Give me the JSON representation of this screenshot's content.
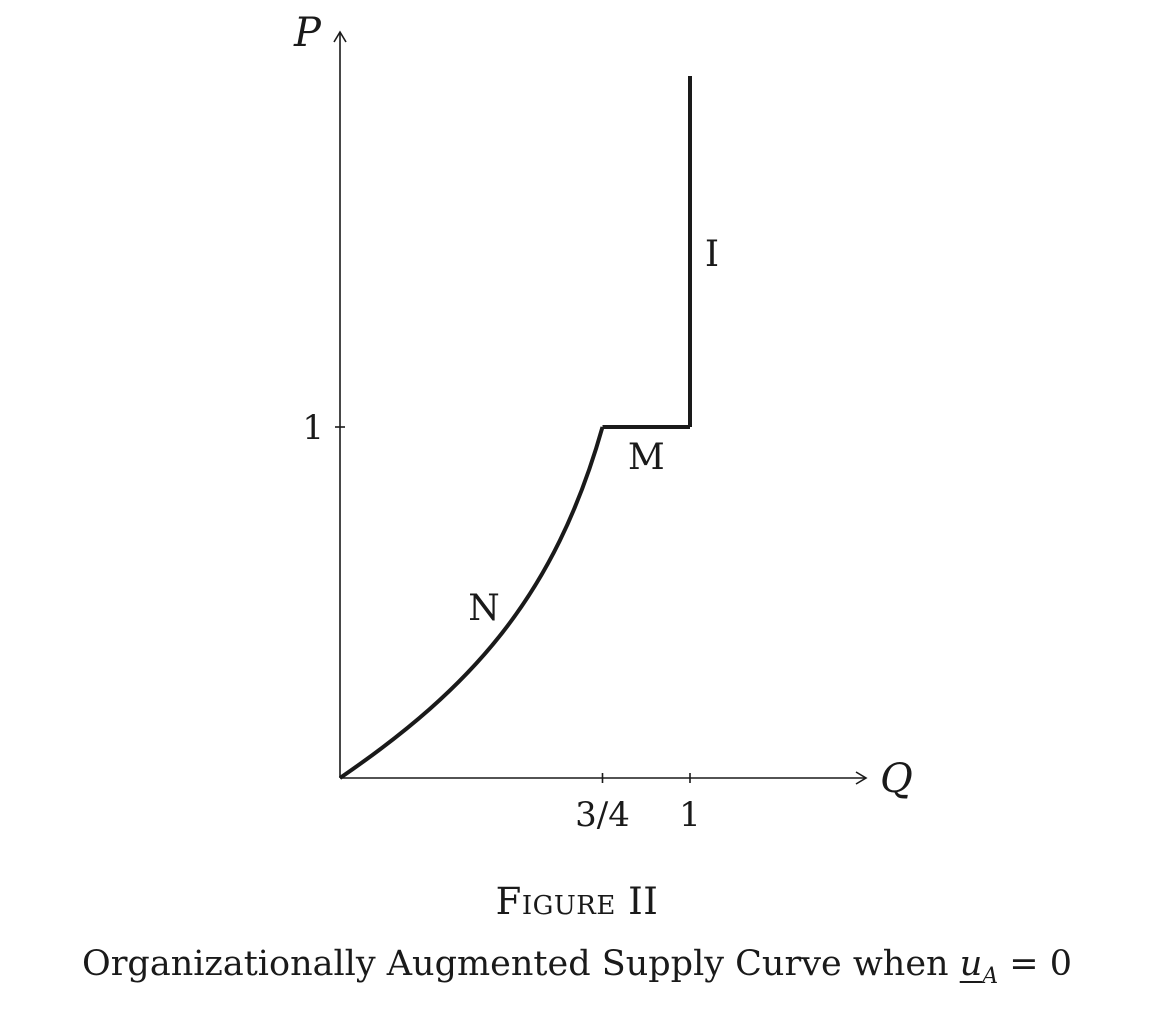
{
  "chart_data": {
    "type": "line",
    "xlabel": "Q",
    "ylabel": "P",
    "x_ticks": [
      {
        "value": 0.75,
        "label": "3/4"
      },
      {
        "value": 1,
        "label": "1"
      }
    ],
    "y_ticks": [
      {
        "value": 1,
        "label": "1"
      }
    ],
    "xlim": [
      0,
      1.5
    ],
    "ylim": [
      0,
      2.0
    ],
    "grid": false,
    "segments": [
      {
        "label": "N",
        "shape": "convex-curve",
        "points": [
          [
            0,
            0
          ],
          [
            0.25,
            0.18
          ],
          [
            0.5,
            0.5
          ],
          [
            0.75,
            1
          ]
        ]
      },
      {
        "label": "M",
        "shape": "horizontal",
        "points": [
          [
            0.75,
            1
          ],
          [
            1,
            1
          ]
        ]
      },
      {
        "label": "I",
        "shape": "vertical",
        "points": [
          [
            1,
            1
          ],
          [
            1,
            2.0
          ]
        ]
      }
    ]
  },
  "caption": {
    "figure_label": "Figure II",
    "title_text": "Organizationally Augmented Supply Curve when ",
    "title_var": "u",
    "title_sub": "A",
    "title_rel": " = 0"
  }
}
